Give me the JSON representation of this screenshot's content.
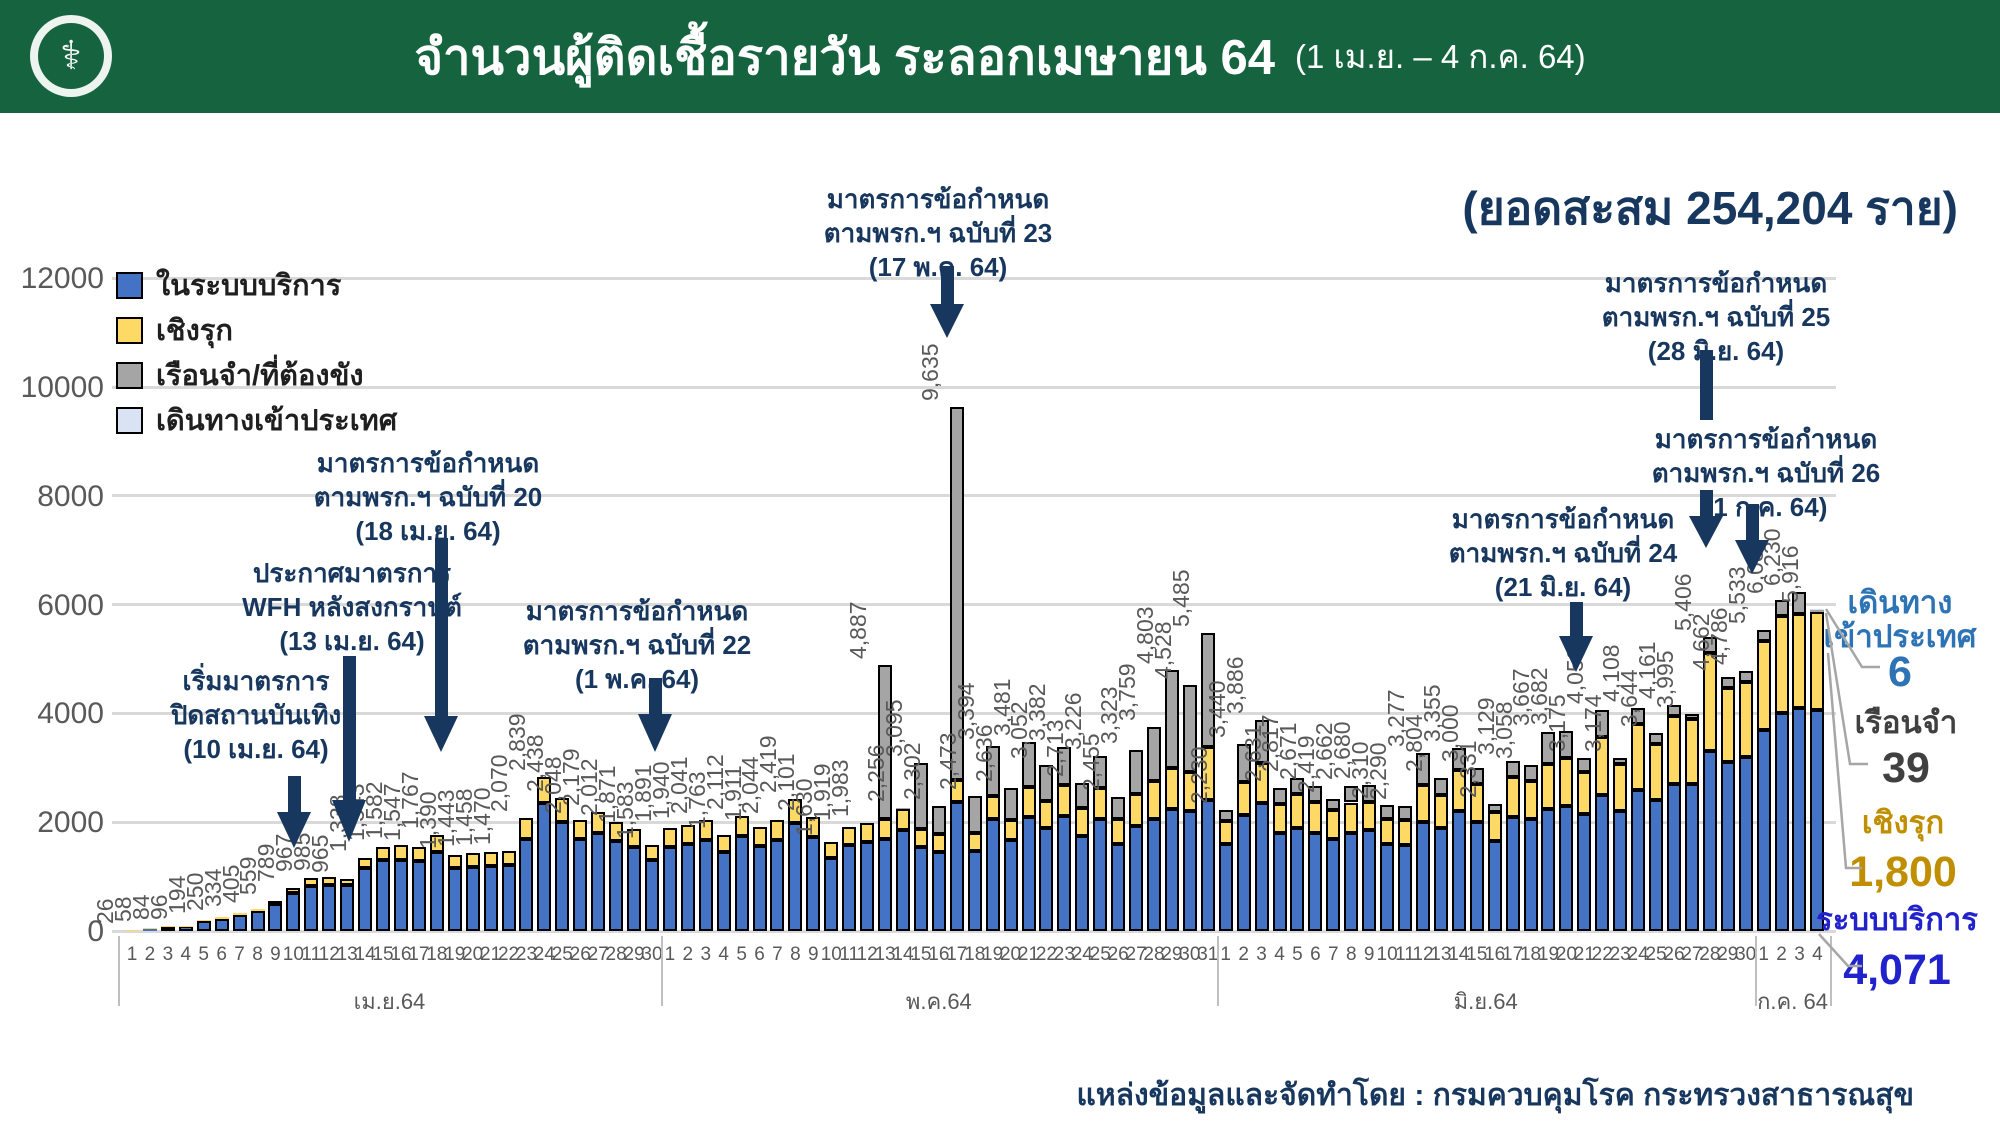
{
  "header": {
    "title": "จำนวนผู้ติดเชื้อรายวัน ระลอกเมษายน 64",
    "subtitle": "(1 เม.ย. – 4 ก.ค. 64)",
    "logo": "ministry-of-public-health-seal",
    "bg_color": "#15643F"
  },
  "cumulative": "(ยอดสะสม 254,204 ราย)",
  "legend": [
    {
      "label": "ในระบบบริการ",
      "color": "#4472C4"
    },
    {
      "label": "เชิงรุก",
      "color": "#FFD965"
    },
    {
      "label": "เรือนจำ/ที่ต้องขัง",
      "color": "#A5A5A5"
    },
    {
      "label": "เดินทางเข้าประเทศ",
      "color": "#DAE3F3"
    }
  ],
  "annotations": [
    {
      "lines": [
        "เริ่มมาตรการ",
        "ปิดสถานบันเทิง",
        "(10 เม.ย. 64)"
      ]
    },
    {
      "lines": [
        "ประกาศมาตรการ",
        "WFH หลังสงกรานต์",
        "(13 เม.ย. 64)"
      ]
    },
    {
      "lines": [
        "มาตรการข้อกำหนด",
        "ตามพรก.ฯ ฉบับที่ 20",
        "(18 เม.ย. 64)"
      ]
    },
    {
      "lines": [
        "มาตรการข้อกำหนด",
        "ตามพรก.ฯ ฉบับที่ 22",
        "(1 พ.ค. 64)"
      ]
    },
    {
      "lines": [
        "มาตรการข้อกำหนด",
        "ตามพรก.ฯ ฉบับที่ 23",
        "(17 พ.ค. 64)"
      ]
    },
    {
      "lines": [
        "มาตรการข้อกำหนด",
        "ตามพรก.ฯ ฉบับที่ 24",
        "(21 มิ.ย. 64)"
      ]
    },
    {
      "lines": [
        "มาตรการข้อกำหนด",
        "ตามพรก.ฯ ฉบับที่ 25",
        "(28 มิ.ย. 64)"
      ]
    },
    {
      "lines": [
        "มาตรการข้อกำหนด",
        "ตามพรก.ฯ ฉบับที่ 26",
        "(1 ก.ค. 64)"
      ]
    }
  ],
  "callouts": [
    {
      "label_lines": [
        "เดินทาง",
        "เข้าประเทศ"
      ],
      "value": "6",
      "color": "#2E74B5"
    },
    {
      "label_lines": [
        "เรือนจำ"
      ],
      "value": "39",
      "color": "#404040"
    },
    {
      "label_lines": [
        "เชิงรุก"
      ],
      "value": "1,800",
      "color": "#BF8F00"
    },
    {
      "label_lines": [
        "ระบบบริการ"
      ],
      "value": "4,071",
      "color": "#2222CC"
    }
  ],
  "footer": "แหล่งข้อมูลและจัดทำโดย : กรมควบคุมโรค กระทรวงสาธารณสุข",
  "chart_data": {
    "type": "bar",
    "stacked": true,
    "title": "จำนวนผู้ติดเชื้อรายวัน ระลอกเมษายน 64 (1 เม.ย. – 4 ก.ค. 64)",
    "ylim": [
      0,
      12000
    ],
    "yticks": [
      0,
      2000,
      4000,
      6000,
      8000,
      10000,
      12000
    ],
    "grid": true,
    "legend_position": "top-left",
    "series_names": [
      "ในระบบบริการ",
      "เชิงรุก",
      "เรือนจำ/ที่ต้องขัง",
      "เดินทางเข้าประเทศ"
    ],
    "months": [
      {
        "label": "เม.ย.64",
        "days": 30
      },
      {
        "label": "พ.ค.64",
        "days": 31
      },
      {
        "label": "มิ.ย.64",
        "days": 30
      },
      {
        "label": "ก.ค. 64",
        "days": 4
      }
    ],
    "totals": [
      26,
      58,
      84,
      96,
      194,
      250,
      334,
      405,
      559,
      789,
      967,
      985,
      965,
      1338,
      1543,
      1582,
      1547,
      1767,
      1390,
      1443,
      1458,
      1470,
      2070,
      2839,
      2438,
      2048,
      2179,
      2012,
      1871,
      1583,
      1891,
      1940,
      2041,
      1763,
      2112,
      1911,
      2044,
      2419,
      2101,
      1630,
      1919,
      1983,
      4887,
      2256,
      3095,
      2302,
      9635,
      2473,
      3394,
      2636,
      3481,
      3052,
      3382,
      2713,
      3226,
      2455,
      3323,
      3759,
      4803,
      4528,
      5485,
      2230,
      3440,
      3886,
      2631,
      2817,
      2671,
      2419,
      2662,
      2680,
      2310,
      2290,
      3277,
      2804,
      3355,
      3000,
      2331,
      3129,
      3058,
      3667,
      3682,
      3175,
      4059,
      3174,
      4108,
      3644,
      4161,
      3995,
      5406,
      4662,
      4786,
      5533,
      6087,
      6230,
      5916
    ],
    "segments": [
      [
        24,
        2,
        0,
        0
      ],
      [
        52,
        6,
        0,
        0
      ],
      [
        76,
        8,
        0,
        0
      ],
      [
        88,
        8,
        0,
        0
      ],
      [
        176,
        18,
        0,
        0
      ],
      [
        225,
        25,
        0,
        0
      ],
      [
        300,
        34,
        0,
        0
      ],
      [
        365,
        40,
        0,
        0
      ],
      [
        500,
        59,
        0,
        0
      ],
      [
        690,
        99,
        0,
        0
      ],
      [
        830,
        137,
        0,
        0
      ],
      [
        850,
        135,
        0,
        0
      ],
      [
        840,
        125,
        0,
        0
      ],
      [
        1150,
        188,
        0,
        0
      ],
      [
        1300,
        243,
        0,
        0
      ],
      [
        1300,
        282,
        0,
        0
      ],
      [
        1280,
        267,
        0,
        0
      ],
      [
        1450,
        317,
        0,
        0
      ],
      [
        1150,
        240,
        0,
        0
      ],
      [
        1180,
        263,
        0,
        0
      ],
      [
        1200,
        258,
        0,
        0
      ],
      [
        1210,
        260,
        0,
        0
      ],
      [
        1700,
        370,
        0,
        0
      ],
      [
        2350,
        489,
        0,
        0
      ],
      [
        2000,
        438,
        0,
        0
      ],
      [
        1700,
        348,
        0,
        0
      ],
      [
        1800,
        379,
        0,
        0
      ],
      [
        1650,
        362,
        0,
        0
      ],
      [
        1540,
        331,
        0,
        0
      ],
      [
        1300,
        283,
        0,
        0
      ],
      [
        1550,
        341,
        0,
        0
      ],
      [
        1600,
        340,
        0,
        0
      ],
      [
        1680,
        361,
        0,
        0
      ],
      [
        1450,
        313,
        0,
        0
      ],
      [
        1740,
        372,
        0,
        0
      ],
      [
        1570,
        341,
        0,
        0
      ],
      [
        1680,
        364,
        0,
        0
      ],
      [
        1990,
        429,
        0,
        0
      ],
      [
        1730,
        371,
        0,
        0
      ],
      [
        1340,
        290,
        0,
        0
      ],
      [
        1580,
        339,
        0,
        0
      ],
      [
        1630,
        353,
        0,
        0
      ],
      [
        1690,
        362,
        2835,
        0
      ],
      [
        1850,
        396,
        10,
        0
      ],
      [
        1550,
        326,
        1219,
        0
      ],
      [
        1460,
        319,
        523,
        0
      ],
      [
        2380,
        402,
        6853,
        0
      ],
      [
        1470,
        323,
        680,
        0
      ],
      [
        2050,
        439,
        905,
        0
      ],
      [
        1680,
        365,
        591,
        0
      ],
      [
        2100,
        549,
        832,
        0
      ],
      [
        1900,
        484,
        668,
        0
      ],
      [
        2110,
        572,
        700,
        0
      ],
      [
        1750,
        513,
        450,
        0
      ],
      [
        2050,
        576,
        600,
        0
      ],
      [
        1600,
        455,
        400,
        0
      ],
      [
        1930,
        593,
        800,
        0
      ],
      [
        2050,
        709,
        1000,
        0
      ],
      [
        2250,
        753,
        1800,
        0
      ],
      [
        2200,
        728,
        1600,
        0
      ],
      [
        2400,
        985,
        2100,
        0
      ],
      [
        1600,
        430,
        200,
        0
      ],
      [
        2130,
        610,
        700,
        0
      ],
      [
        2350,
        736,
        800,
        0
      ],
      [
        1800,
        531,
        300,
        0
      ],
      [
        1900,
        617,
        300,
        0
      ],
      [
        1800,
        571,
        300,
        0
      ],
      [
        1700,
        519,
        200,
        0
      ],
      [
        1800,
        562,
        300,
        0
      ],
      [
        1850,
        530,
        300,
        0
      ],
      [
        1600,
        460,
        250,
        0
      ],
      [
        1580,
        460,
        250,
        0
      ],
      [
        2000,
        677,
        600,
        0
      ],
      [
        1900,
        604,
        300,
        0
      ],
      [
        2200,
        755,
        400,
        0
      ],
      [
        2000,
        700,
        300,
        0
      ],
      [
        1650,
        531,
        150,
        0
      ],
      [
        2100,
        729,
        300,
        0
      ],
      [
        2050,
        708,
        300,
        0
      ],
      [
        2250,
        817,
        600,
        0
      ],
      [
        2300,
        882,
        500,
        0
      ],
      [
        2150,
        775,
        250,
        0
      ],
      [
        2500,
        1059,
        500,
        0
      ],
      [
        2200,
        874,
        100,
        0
      ],
      [
        2600,
        1208,
        300,
        0
      ],
      [
        2400,
        1044,
        200,
        0
      ],
      [
        2700,
        1261,
        200,
        0
      ],
      [
        2700,
        1195,
        100,
        0
      ],
      [
        3300,
        1806,
        300,
        0
      ],
      [
        3100,
        1362,
        200,
        0
      ],
      [
        3200,
        1386,
        200,
        0
      ],
      [
        3700,
        1633,
        200,
        0
      ],
      [
        4000,
        1787,
        300,
        0
      ],
      [
        4100,
        1730,
        400,
        0
      ],
      [
        4071,
        1800,
        39,
        6
      ]
    ]
  }
}
